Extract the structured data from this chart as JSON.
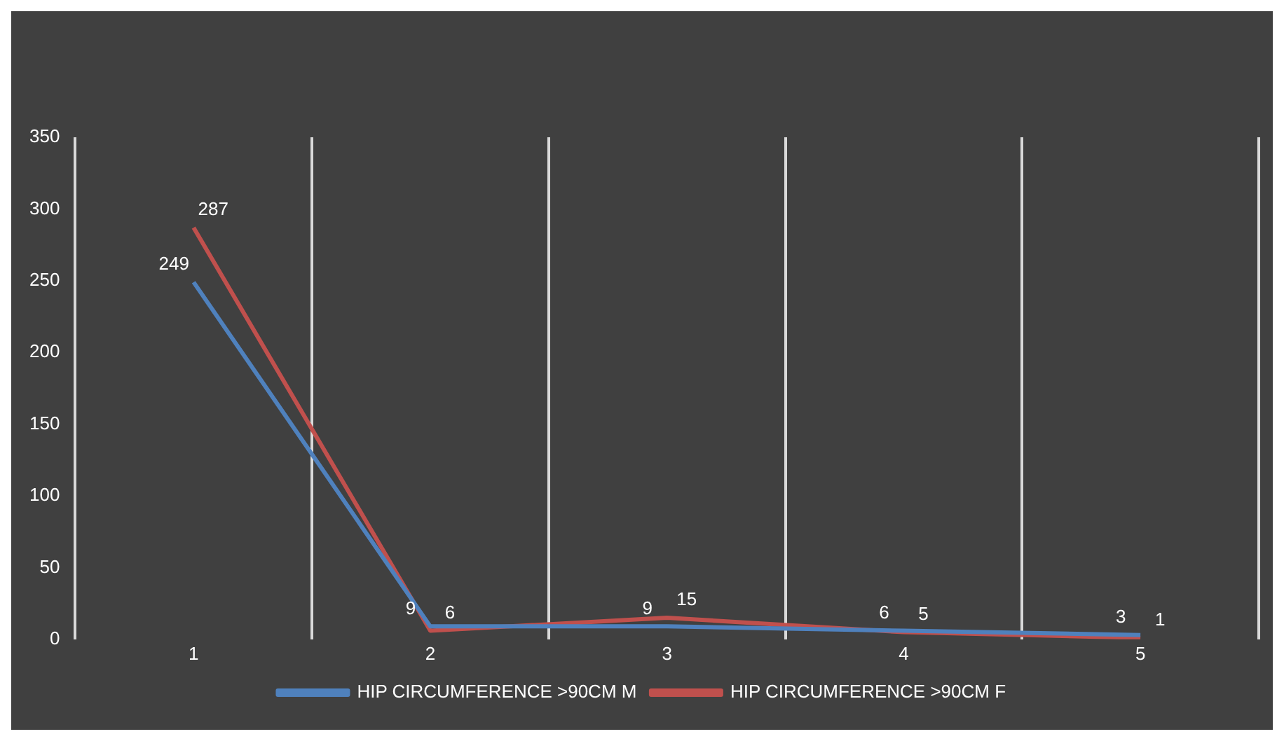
{
  "chart_data": {
    "type": "line",
    "categories": [
      "1",
      "2",
      "3",
      "4",
      "5"
    ],
    "series": [
      {
        "name": "HIP CIRCUMFERENCE >90CM M",
        "color": "#4f81bd",
        "values": [
          249,
          9,
          9,
          6,
          3
        ]
      },
      {
        "name": "HIP CIRCUMFERENCE >90CM F",
        "color": "#c0504d",
        "values": [
          287,
          6,
          15,
          5,
          1
        ]
      }
    ],
    "ylim": [
      0,
      350
    ],
    "yticks": [
      0,
      50,
      100,
      150,
      200,
      250,
      300,
      350
    ],
    "grid": "x",
    "legend": "bottom",
    "data_labels": true,
    "marker": "none"
  }
}
